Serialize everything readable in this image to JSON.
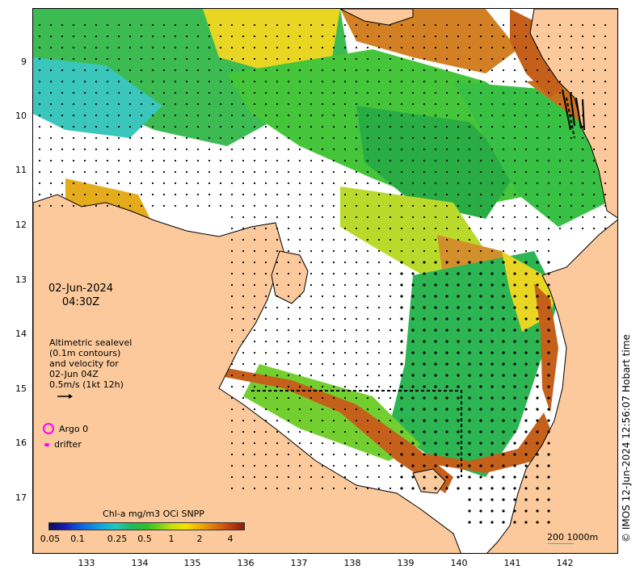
{
  "map": {
    "date": "02-Jun-2024",
    "time": "04:30Z",
    "lat_ticks": [
      "9",
      "10",
      "11",
      "12",
      "13",
      "14",
      "15",
      "16",
      "17"
    ],
    "lon_ticks": [
      "133",
      "134",
      "135",
      "136",
      "137",
      "138",
      "139",
      "140",
      "141",
      "142"
    ],
    "lat_range": [
      -17.8,
      -8.3
    ],
    "lon_range": [
      132.0,
      143.0
    ]
  },
  "sealevel_legend": {
    "line1": "Altimetric sealevel",
    "line2": "(0.1m contours)",
    "line3": "and velocity for",
    "line4": "02-Jun 04Z",
    "line5": "0.5m/s (1kt 12h)"
  },
  "markers": {
    "argo_label": "Argo 0",
    "drifter_label": "drifter"
  },
  "colorbar": {
    "title": "Chl-a mg/m3 OCi SNPP",
    "ticks": [
      "0.05",
      "0.1",
      "0.25",
      "0.5",
      "1",
      "2",
      "4"
    ]
  },
  "scale_bar": {
    "label": "200  1000m"
  },
  "credit": "© IMOS 12-Jun-2024 12:56:07 Hobart time",
  "colors": {
    "land": "#fbc99b",
    "high_chl": "#c05010",
    "mid_chl": "#2ec02a",
    "low_chl": "#20c8c0"
  }
}
